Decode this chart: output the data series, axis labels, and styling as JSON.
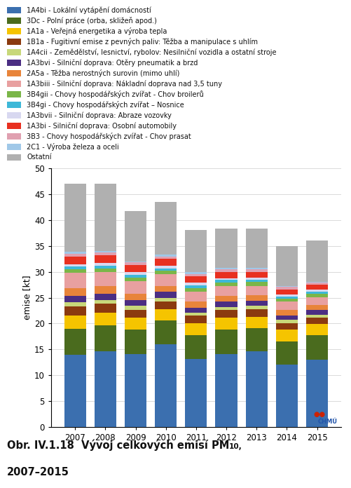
{
  "years": [
    2007,
    2008,
    2009,
    2010,
    2011,
    2012,
    2013,
    2014,
    2015
  ],
  "sectors": [
    {
      "label": "1A4bi - Lokální vytápění domácností",
      "color": "#3b6faf",
      "values": [
        14.0,
        14.7,
        14.1,
        16.0,
        13.2,
        14.1,
        14.6,
        12.1,
        13.0
      ]
    },
    {
      "label": "3Dc - Polní práce (orba, skližeň apod.)",
      "color": "#4a6b1e",
      "values": [
        5.0,
        5.0,
        4.8,
        4.6,
        4.6,
        4.8,
        4.5,
        4.5,
        4.8
      ]
    },
    {
      "label": "1A1a - Veřejná energetika a výroba tepla",
      "color": "#f5c400",
      "values": [
        2.5,
        2.4,
        2.2,
        2.2,
        2.2,
        2.2,
        2.2,
        2.2,
        2.1
      ]
    },
    {
      "label": "1B1a - Fugitivní emise z pevných paliv: Těžba a manipulace s uhlím",
      "color": "#8b3a0f",
      "values": [
        1.8,
        1.7,
        1.6,
        1.5,
        1.5,
        1.5,
        1.5,
        1.3,
        1.3
      ]
    },
    {
      "label": "1A4cii - Zemědělství, lesnictví, rybolov: Nesilniční vozidla a ostatní stroje",
      "color": "#c8d87a",
      "values": [
        0.8,
        0.8,
        0.7,
        0.7,
        0.6,
        0.6,
        0.6,
        0.6,
        0.5
      ]
    },
    {
      "label": "1A3bvi - Silniční doprava: Otěry pneumatik a brzd",
      "color": "#4b2e83",
      "values": [
        1.2,
        1.2,
        1.1,
        1.1,
        1.0,
        1.0,
        1.0,
        0.9,
        0.9
      ]
    },
    {
      "label": "2A5a - Těžba nerostných surovin (mimo uhlí)",
      "color": "#e8843a",
      "values": [
        1.5,
        1.4,
        1.2,
        1.2,
        1.1,
        1.1,
        1.1,
        1.0,
        1.0
      ]
    },
    {
      "label": "1A3biii - Silniční doprava: Nákladní doprava nad 3,5 tuny",
      "color": "#e8a0a0",
      "values": [
        3.0,
        2.8,
        2.5,
        2.2,
        2.0,
        1.9,
        1.8,
        1.6,
        1.5
      ]
    },
    {
      "label": "3B4gii - Chovy hospodářských zvířat - Chov broilerů",
      "color": "#7ab648",
      "values": [
        0.7,
        0.7,
        0.7,
        0.7,
        0.7,
        0.7,
        0.7,
        0.6,
        0.6
      ]
    },
    {
      "label": "3B4gi - Chovy hospodářských zvířat – Nosnice",
      "color": "#3db8d8",
      "values": [
        0.5,
        0.5,
        0.5,
        0.5,
        0.5,
        0.5,
        0.5,
        0.4,
        0.4
      ]
    },
    {
      "label": "1A3bvii - Silniční doprava: Abraze vozovky",
      "color": "#d8d8f0",
      "values": [
        0.5,
        0.5,
        0.5,
        0.5,
        0.5,
        0.4,
        0.4,
        0.4,
        0.4
      ]
    },
    {
      "label": "1A3bi - Silniční doprava: Osobní automobily",
      "color": "#e83020",
      "values": [
        1.5,
        1.5,
        1.4,
        1.3,
        1.2,
        1.2,
        1.1,
        1.0,
        1.0
      ]
    },
    {
      "label": "3B3 - Chovy hospodářských zvířat - Chov prasat",
      "color": "#e0a0b0",
      "values": [
        0.5,
        0.5,
        0.5,
        0.5,
        0.5,
        0.5,
        0.5,
        0.5,
        0.4
      ]
    },
    {
      "label": "2C1 - Výroba železa a oceli",
      "color": "#a0c8e8",
      "values": [
        0.4,
        0.3,
        0.2,
        0.3,
        0.3,
        0.3,
        0.3,
        0.2,
        0.2
      ]
    },
    {
      "label": "Ostatní",
      "color": "#b0b0b0",
      "values": [
        13.1,
        13.0,
        9.8,
        10.2,
        8.2,
        7.6,
        7.5,
        7.7,
        7.9
      ]
    }
  ],
  "ylabel": "emise [kt]",
  "ylim": [
    0,
    50
  ],
  "yticks": [
    0,
    5,
    10,
    15,
    20,
    25,
    30,
    35,
    40,
    45,
    50
  ],
  "caption_line1": "Obr. IV.1.18  Vývoj celkových emisí PM",
  "caption_sub": "10,",
  "caption_line2": "2007–2015"
}
